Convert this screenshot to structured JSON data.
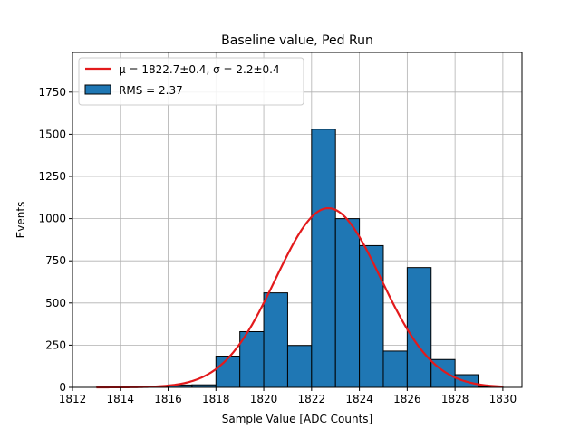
{
  "chart_data": {
    "type": "bar",
    "title": "Baseline value, Ped Run",
    "xlabel": "Sample Value [ADC Counts]",
    "ylabel": "Events",
    "xlim": [
      1812,
      1830.8
    ],
    "ylim": [
      0,
      1985
    ],
    "grid": true,
    "legend_placement": "top-left",
    "x_ticks": [
      1812,
      1814,
      1816,
      1818,
      1820,
      1822,
      1824,
      1826,
      1828,
      1830
    ],
    "y_ticks": [
      0,
      250,
      500,
      750,
      1000,
      1250,
      1500,
      1750
    ],
    "bin_edges": [
      1813,
      1814,
      1815,
      1816,
      1817,
      1818,
      1819,
      1820,
      1821,
      1822,
      1823,
      1824,
      1825,
      1826,
      1827,
      1828,
      1829,
      1830
    ],
    "counts": [
      1,
      2,
      5,
      14,
      15,
      185,
      330,
      560,
      248,
      1530,
      1000,
      840,
      215,
      710,
      165,
      75,
      5
    ],
    "bar_color": "#1f77b4",
    "bar_edge_color": "#000000",
    "fit": {
      "type": "gaussian",
      "mu": 1822.7,
      "sigma": 2.2,
      "amplitude": 1062,
      "x_range": [
        1813,
        1830
      ],
      "color": "#e31a1c"
    },
    "legend": {
      "fit_label": "μ = 1822.7±0.4, σ = 2.2±0.4",
      "hist_label": "RMS = 2.37"
    }
  }
}
